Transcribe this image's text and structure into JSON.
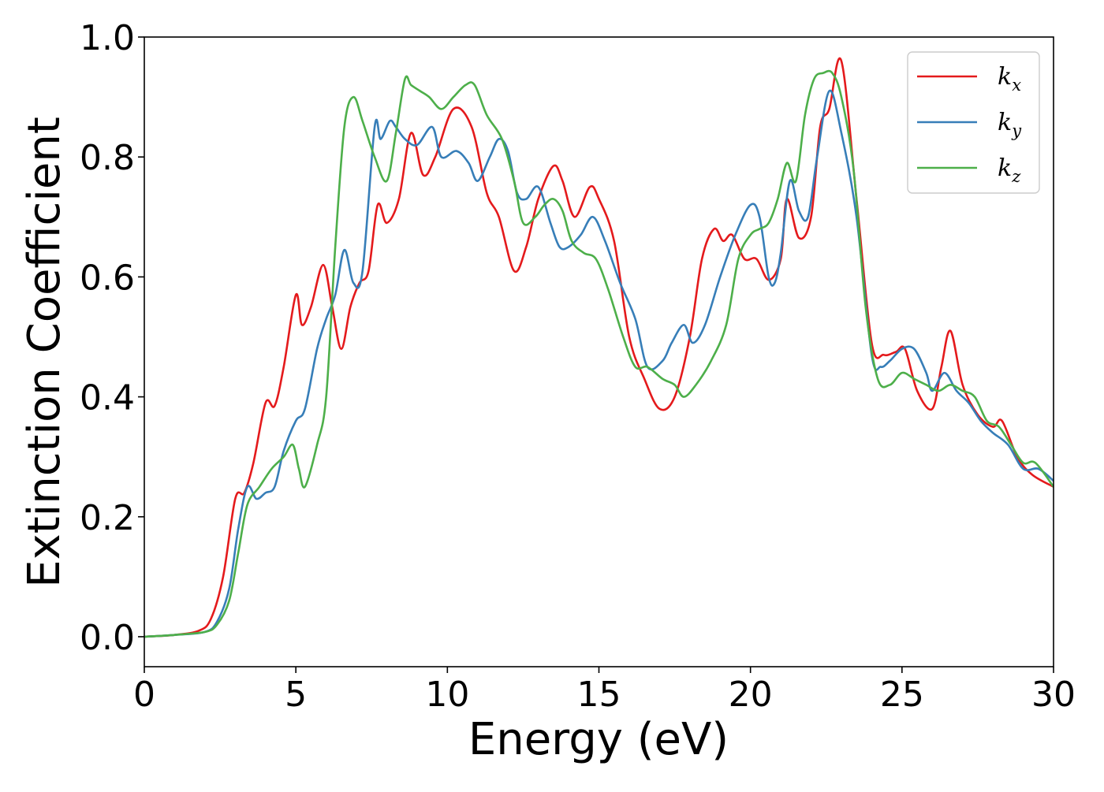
{
  "chart_data": {
    "type": "line",
    "title": "",
    "xlabel": "Energy (eV)",
    "ylabel": "Extinction Coefficient",
    "xlim": [
      0,
      30
    ],
    "ylim": [
      -0.05,
      1.0
    ],
    "xticks": [
      0,
      5,
      10,
      15,
      20,
      25,
      30
    ],
    "xtick_labels": [
      "0",
      "5",
      "10",
      "15",
      "20",
      "25",
      "30"
    ],
    "yticks": [
      0.0,
      0.2,
      0.4,
      0.6,
      0.8,
      1.0
    ],
    "ytick_labels": [
      "0.0",
      "0.2",
      "0.4",
      "0.6",
      "0.8",
      "1.0"
    ],
    "grid": false,
    "legend_position": "top-right",
    "series": [
      {
        "name": "k_x",
        "label_main": "k",
        "label_sub": "x",
        "color": "#e41a1c",
        "x": [
          0,
          1,
          1.8,
          2.2,
          2.6,
          3.0,
          3.3,
          3.6,
          4.0,
          4.3,
          4.6,
          5.0,
          5.2,
          5.5,
          5.9,
          6.2,
          6.5,
          6.8,
          7.1,
          7.4,
          7.7,
          8.0,
          8.4,
          8.8,
          9.2,
          9.6,
          10.2,
          10.8,
          11.3,
          11.7,
          12.2,
          12.6,
          13.0,
          13.5,
          13.8,
          14.2,
          14.7,
          15.0,
          15.5,
          16.0,
          16.5,
          17.0,
          17.5,
          18.0,
          18.4,
          18.8,
          19.1,
          19.4,
          19.8,
          20.2,
          20.6,
          21.0,
          21.2,
          21.6,
          22.0,
          22.3,
          22.6,
          23.0,
          23.5,
          24.0,
          24.4,
          24.8,
          25.1,
          25.5,
          26.0,
          26.3,
          26.6,
          27.0,
          27.5,
          28.0,
          28.3,
          28.8,
          29.3,
          30.0
        ],
        "y": [
          0.0,
          0.003,
          0.01,
          0.03,
          0.1,
          0.23,
          0.24,
          0.29,
          0.39,
          0.385,
          0.45,
          0.57,
          0.52,
          0.55,
          0.62,
          0.55,
          0.48,
          0.55,
          0.59,
          0.61,
          0.72,
          0.69,
          0.73,
          0.84,
          0.77,
          0.8,
          0.88,
          0.85,
          0.74,
          0.7,
          0.61,
          0.65,
          0.73,
          0.785,
          0.76,
          0.7,
          0.75,
          0.73,
          0.66,
          0.5,
          0.43,
          0.38,
          0.4,
          0.5,
          0.63,
          0.68,
          0.66,
          0.67,
          0.63,
          0.63,
          0.595,
          0.63,
          0.73,
          0.665,
          0.7,
          0.85,
          0.88,
          0.96,
          0.73,
          0.49,
          0.47,
          0.475,
          0.48,
          0.41,
          0.38,
          0.45,
          0.51,
          0.42,
          0.37,
          0.35,
          0.36,
          0.3,
          0.27,
          0.25
        ]
      },
      {
        "name": "k_y",
        "label_main": "k",
        "label_sub": "y",
        "color": "#377eb8",
        "x": [
          0,
          1,
          2.0,
          2.4,
          2.8,
          3.1,
          3.4,
          3.7,
          4.0,
          4.3,
          4.6,
          5.0,
          5.3,
          5.7,
          6.0,
          6.3,
          6.6,
          6.9,
          7.2,
          7.6,
          7.8,
          8.1,
          8.3,
          8.6,
          9.0,
          9.5,
          9.8,
          10.3,
          10.7,
          11.0,
          11.4,
          11.7,
          12.0,
          12.3,
          12.6,
          13.0,
          13.4,
          13.7,
          14.0,
          14.4,
          14.8,
          15.2,
          15.7,
          16.2,
          16.6,
          17.1,
          17.4,
          17.8,
          18.1,
          18.5,
          19.0,
          19.5,
          20.0,
          20.3,
          20.6,
          20.8,
          21.0,
          21.3,
          21.6,
          21.9,
          22.2,
          22.6,
          23.0,
          23.5,
          24.0,
          24.3,
          24.6,
          25.0,
          25.4,
          25.8,
          26.0,
          26.4,
          26.8,
          27.2,
          27.6,
          28.0,
          28.5,
          29.0,
          29.5,
          30.0
        ],
        "y": [
          0.0,
          0.003,
          0.008,
          0.025,
          0.08,
          0.18,
          0.25,
          0.23,
          0.24,
          0.25,
          0.31,
          0.36,
          0.38,
          0.48,
          0.53,
          0.57,
          0.645,
          0.59,
          0.61,
          0.85,
          0.83,
          0.86,
          0.85,
          0.83,
          0.82,
          0.85,
          0.8,
          0.81,
          0.79,
          0.76,
          0.8,
          0.83,
          0.81,
          0.74,
          0.73,
          0.75,
          0.69,
          0.65,
          0.65,
          0.67,
          0.7,
          0.66,
          0.59,
          0.53,
          0.45,
          0.46,
          0.49,
          0.52,
          0.49,
          0.52,
          0.6,
          0.67,
          0.72,
          0.7,
          0.6,
          0.59,
          0.64,
          0.76,
          0.71,
          0.7,
          0.8,
          0.91,
          0.84,
          0.7,
          0.47,
          0.45,
          0.46,
          0.48,
          0.48,
          0.44,
          0.41,
          0.44,
          0.41,
          0.39,
          0.36,
          0.34,
          0.32,
          0.28,
          0.28,
          0.26
        ]
      },
      {
        "name": "k_z",
        "label_main": "k",
        "label_sub": "z",
        "color": "#4daf4a",
        "x": [
          0,
          1,
          2.0,
          2.4,
          2.8,
          3.1,
          3.4,
          3.8,
          4.2,
          4.6,
          4.9,
          5.1,
          5.3,
          5.7,
          6.0,
          6.3,
          6.6,
          6.9,
          7.2,
          7.6,
          8.0,
          8.3,
          8.6,
          8.8,
          9.1,
          9.4,
          9.8,
          10.2,
          10.6,
          10.9,
          11.3,
          11.8,
          12.2,
          12.5,
          12.9,
          13.2,
          13.5,
          13.8,
          14.1,
          14.5,
          14.9,
          15.3,
          15.8,
          16.2,
          16.6,
          17.1,
          17.5,
          17.8,
          18.2,
          18.7,
          19.2,
          19.6,
          20.0,
          20.3,
          20.6,
          20.9,
          21.2,
          21.5,
          21.8,
          22.1,
          22.4,
          22.7,
          23.0,
          23.4,
          23.8,
          24.2,
          24.6,
          25.0,
          25.4,
          25.8,
          26.2,
          26.6,
          27.0,
          27.4,
          27.8,
          28.2,
          28.6,
          29.0,
          29.4,
          30.0
        ],
        "y": [
          0.0,
          0.003,
          0.008,
          0.02,
          0.06,
          0.14,
          0.22,
          0.25,
          0.28,
          0.3,
          0.32,
          0.28,
          0.25,
          0.32,
          0.4,
          0.65,
          0.85,
          0.9,
          0.86,
          0.8,
          0.76,
          0.84,
          0.93,
          0.92,
          0.91,
          0.9,
          0.88,
          0.9,
          0.92,
          0.92,
          0.87,
          0.83,
          0.76,
          0.69,
          0.7,
          0.72,
          0.73,
          0.71,
          0.66,
          0.64,
          0.63,
          0.58,
          0.5,
          0.45,
          0.45,
          0.43,
          0.42,
          0.4,
          0.42,
          0.46,
          0.52,
          0.63,
          0.67,
          0.68,
          0.69,
          0.73,
          0.79,
          0.76,
          0.87,
          0.93,
          0.94,
          0.94,
          0.9,
          0.78,
          0.55,
          0.43,
          0.42,
          0.44,
          0.43,
          0.42,
          0.41,
          0.42,
          0.41,
          0.4,
          0.36,
          0.35,
          0.32,
          0.29,
          0.29,
          0.25
        ]
      }
    ]
  }
}
